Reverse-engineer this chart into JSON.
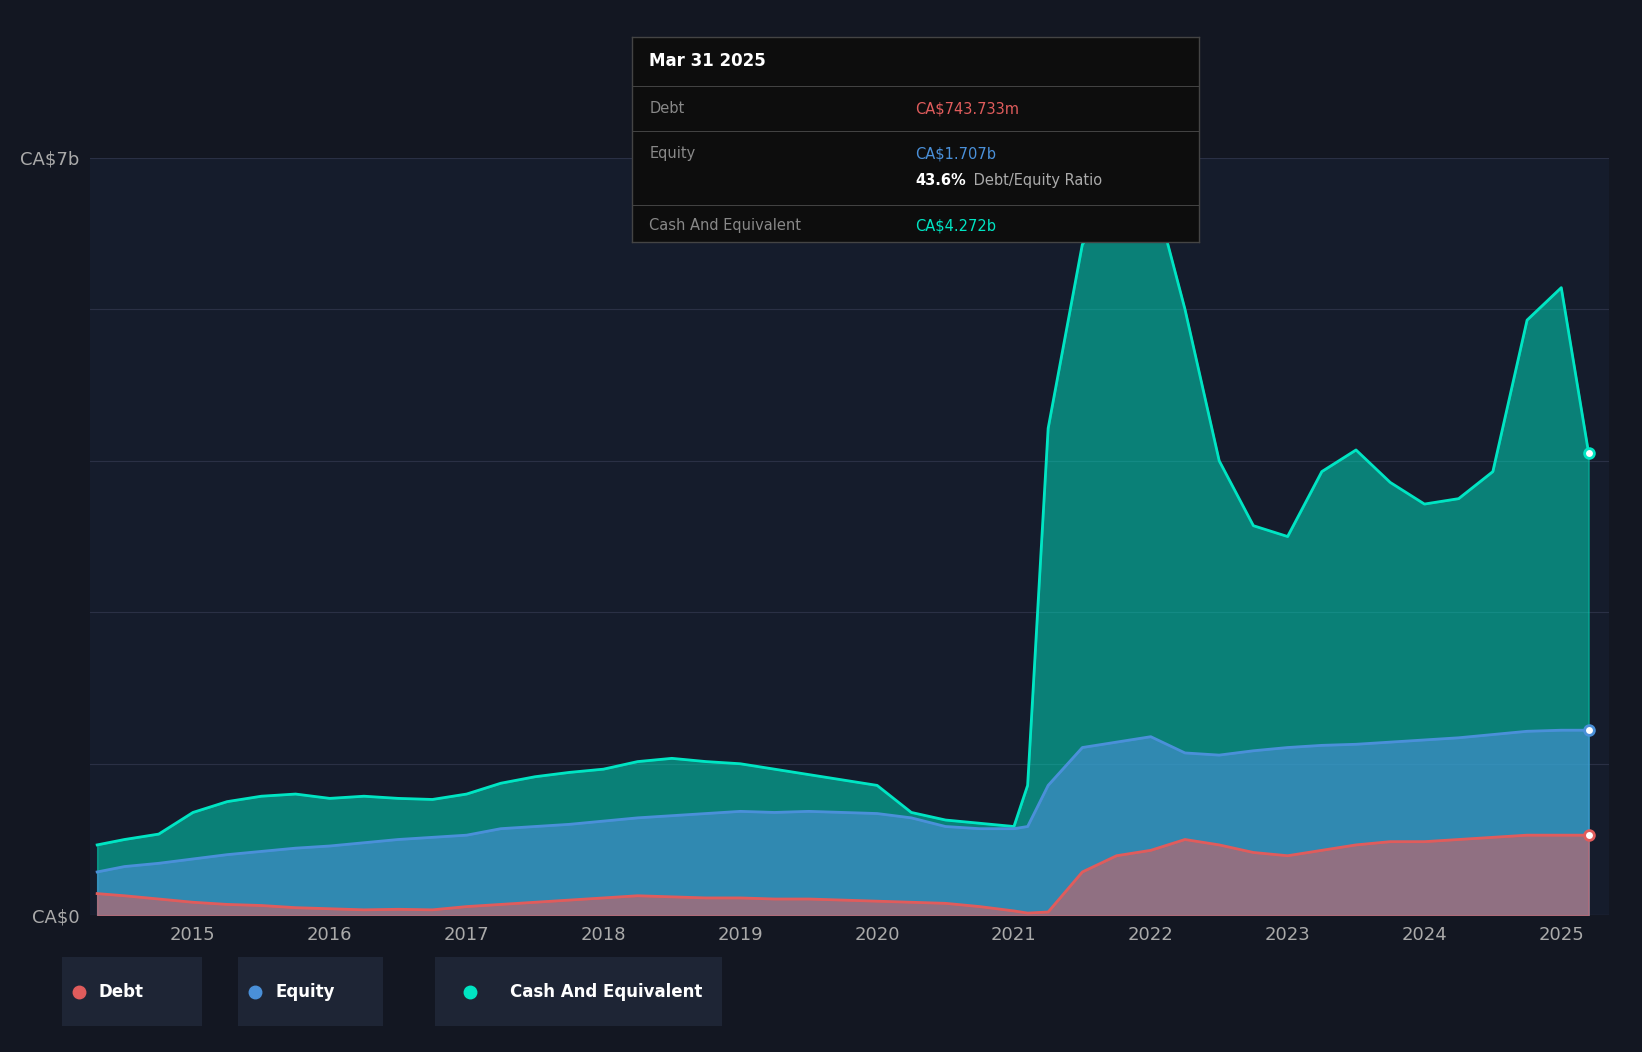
{
  "background_color": "#131722",
  "plot_bg_color": "#151c2c",
  "grid_color": "#2a3045",
  "debt_color": "#e05c5c",
  "equity_color": "#4a90d9",
  "cash_color": "#00e5c3",
  "tooltip_title": "Mar 31 2025",
  "tooltip_debt_label": "Debt",
  "tooltip_debt_value": "CA$743.733m",
  "tooltip_equity_label": "Equity",
  "tooltip_equity_value": "CA$1.707b",
  "tooltip_ratio_bold": "43.6%",
  "tooltip_ratio_rest": " Debt/Equity Ratio",
  "tooltip_cash_label": "Cash And Equivalent",
  "tooltip_cash_value": "CA$4.272b",
  "legend_items": [
    "Debt",
    "Equity",
    "Cash And Equivalent"
  ],
  "legend_bg": "#1e2535",
  "ylim": [
    0,
    7000000000
  ],
  "y_ticks": [
    0,
    7000000000
  ],
  "y_labels": [
    "CA$0",
    "CA$7b"
  ],
  "x_ticks": [
    2015,
    2016,
    2017,
    2018,
    2019,
    2020,
    2021,
    2022,
    2023,
    2024,
    2025
  ],
  "dates": [
    2014.3,
    2014.5,
    2014.75,
    2015.0,
    2015.25,
    2015.5,
    2015.75,
    2016.0,
    2016.25,
    2016.5,
    2016.75,
    2017.0,
    2017.25,
    2017.5,
    2017.75,
    2018.0,
    2018.25,
    2018.5,
    2018.75,
    2019.0,
    2019.25,
    2019.5,
    2019.75,
    2020.0,
    2020.25,
    2020.5,
    2020.75,
    2021.0,
    2021.1,
    2021.25,
    2021.5,
    2021.75,
    2022.0,
    2022.25,
    2022.5,
    2022.75,
    2023.0,
    2023.25,
    2023.5,
    2023.75,
    2024.0,
    2024.25,
    2024.5,
    2024.75,
    2025.0,
    2025.2
  ],
  "debt": [
    200000000.0,
    180000000.0,
    150000000.0,
    120000000.0,
    100000000.0,
    90000000.0,
    70000000.0,
    60000000.0,
    50000000.0,
    55000000.0,
    50000000.0,
    80000000.0,
    100000000.0,
    120000000.0,
    140000000.0,
    160000000.0,
    180000000.0,
    170000000.0,
    160000000.0,
    160000000.0,
    150000000.0,
    150000000.0,
    140000000.0,
    130000000.0,
    120000000.0,
    110000000.0,
    80000000.0,
    40000000.0,
    20000000.0,
    30000000.0,
    400000000.0,
    550000000.0,
    600000000.0,
    700000000.0,
    650000000.0,
    580000000.0,
    550000000.0,
    600000000.0,
    650000000.0,
    680000000.0,
    680000000.0,
    700000000.0,
    720000000.0,
    740000000.0,
    740000000.0,
    740000000.0
  ],
  "equity": [
    400000000.0,
    450000000.0,
    480000000.0,
    520000000.0,
    560000000.0,
    590000000.0,
    620000000.0,
    640000000.0,
    670000000.0,
    700000000.0,
    720000000.0,
    740000000.0,
    800000000.0,
    820000000.0,
    840000000.0,
    870000000.0,
    900000000.0,
    920000000.0,
    940000000.0,
    960000000.0,
    950000000.0,
    960000000.0,
    950000000.0,
    940000000.0,
    900000000.0,
    820000000.0,
    800000000.0,
    800000000.0,
    820000000.0,
    1200000000.0,
    1550000000.0,
    1600000000.0,
    1650000000.0,
    1500000000.0,
    1480000000.0,
    1520000000.0,
    1550000000.0,
    1570000000.0,
    1580000000.0,
    1600000000.0,
    1620000000.0,
    1640000000.0,
    1670000000.0,
    1700000000.0,
    1710000000.0,
    1710000000.0
  ],
  "cash": [
    650000000.0,
    700000000.0,
    750000000.0,
    950000000.0,
    1050000000.0,
    1100000000.0,
    1120000000.0,
    1080000000.0,
    1100000000.0,
    1080000000.0,
    1070000000.0,
    1120000000.0,
    1220000000.0,
    1280000000.0,
    1320000000.0,
    1350000000.0,
    1420000000.0,
    1450000000.0,
    1420000000.0,
    1400000000.0,
    1350000000.0,
    1300000000.0,
    1250000000.0,
    1200000000.0,
    950000000.0,
    880000000.0,
    850000000.0,
    820000000.0,
    1200000000.0,
    4500000000.0,
    6200000000.0,
    6600000000.0,
    6800000000.0,
    5600000000.0,
    4200000000.0,
    3600000000.0,
    3500000000.0,
    4100000000.0,
    4300000000.0,
    4000000000.0,
    3800000000.0,
    3850000000.0,
    4100000000.0,
    5500000000.0,
    5800000000.0,
    4270000000.0
  ]
}
